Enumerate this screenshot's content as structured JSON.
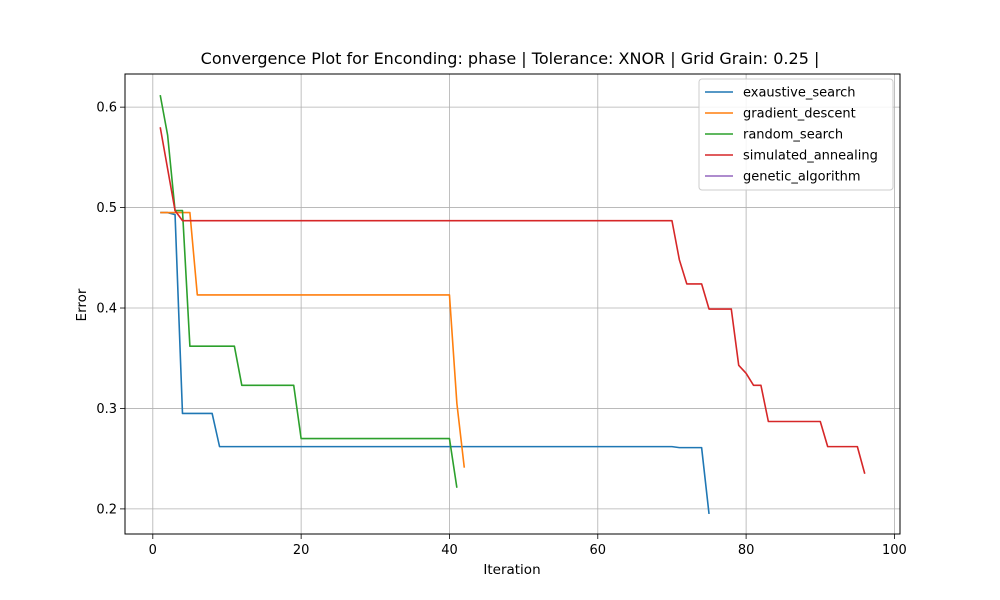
{
  "chart_data": {
    "type": "line",
    "title": "Convergence Plot for Enconding: phase | Tolerance: XNOR | Grid Grain: 0.25 |",
    "xlabel": "Iteration",
    "ylabel": "Error",
    "xlim": [
      -3.75,
      100.75
    ],
    "ylim": [
      0.175,
      0.633
    ],
    "xticks": [
      0,
      20,
      40,
      60,
      80,
      100
    ],
    "yticks": [
      0.2,
      0.3,
      0.4,
      0.5,
      0.6
    ],
    "grid": true,
    "legend_position": "top-right",
    "series": [
      {
        "name": "exaustive_search",
        "color": "#1f77b4",
        "points": [
          [
            1,
            0.495
          ],
          [
            2,
            0.495
          ],
          [
            3,
            0.493
          ],
          [
            4,
            0.295
          ],
          [
            8,
            0.295
          ],
          [
            9,
            0.262
          ],
          [
            70,
            0.262
          ],
          [
            71,
            0.261
          ],
          [
            74,
            0.261
          ],
          [
            75,
            0.195
          ]
        ]
      },
      {
        "name": "gradient_descent",
        "color": "#ff7f0e",
        "points": [
          [
            1,
            0.495
          ],
          [
            5,
            0.495
          ],
          [
            6,
            0.413
          ],
          [
            40,
            0.413
          ],
          [
            41,
            0.305
          ],
          [
            42,
            0.241
          ]
        ]
      },
      {
        "name": "random_search",
        "color": "#2ca02c",
        "points": [
          [
            1,
            0.612
          ],
          [
            2,
            0.572
          ],
          [
            3,
            0.497
          ],
          [
            4,
            0.497
          ],
          [
            5,
            0.362
          ],
          [
            11,
            0.362
          ],
          [
            12,
            0.323
          ],
          [
            19,
            0.323
          ],
          [
            20,
            0.27
          ],
          [
            40,
            0.27
          ],
          [
            41,
            0.221
          ]
        ]
      },
      {
        "name": "simulated_annealing",
        "color": "#d62728",
        "points": [
          [
            1,
            0.58
          ],
          [
            3,
            0.497
          ],
          [
            4,
            0.487
          ],
          [
            70,
            0.487
          ],
          [
            71,
            0.448
          ],
          [
            72,
            0.424
          ],
          [
            74,
            0.424
          ],
          [
            75,
            0.399
          ],
          [
            78,
            0.399
          ],
          [
            79,
            0.343
          ],
          [
            80,
            0.335
          ],
          [
            81,
            0.323
          ],
          [
            82,
            0.323
          ],
          [
            83,
            0.287
          ],
          [
            90,
            0.287
          ],
          [
            91,
            0.262
          ],
          [
            95,
            0.262
          ],
          [
            96,
            0.235
          ]
        ]
      },
      {
        "name": "genetic_algorithm",
        "color": "#9467bd",
        "points": []
      }
    ]
  }
}
